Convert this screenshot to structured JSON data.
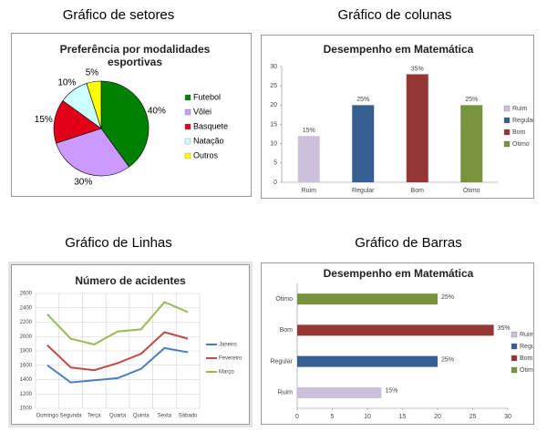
{
  "chart_data": [
    {
      "type": "pie",
      "caption": "Gráfico de setores",
      "title": "Preferência por modalidades esportivas",
      "categories": [
        "Futebol",
        "Vôlei",
        "Basquete",
        "Natação",
        "Outros"
      ],
      "values": [
        40,
        30,
        15,
        10,
        5
      ],
      "value_labels": [
        "40%",
        "30%",
        "15%",
        "10%",
        "5%"
      ],
      "colors": [
        "#008000",
        "#cc99ff",
        "#e00018",
        "#ccffff",
        "#ffff00"
      ]
    },
    {
      "type": "bar",
      "caption": "Gráfico de colunas",
      "title": "Desempenho em Matemática",
      "categories": [
        "Ruim",
        "Regular",
        "Bom",
        "Ótimo"
      ],
      "values": [
        12,
        20,
        28,
        20
      ],
      "bar_labels": [
        "15%",
        "25%",
        "35%",
        "25%"
      ],
      "colors": [
        "#ccc0da",
        "#376092",
        "#953735",
        "#77933c"
      ],
      "ylim": [
        0,
        30
      ],
      "yticks": [
        0,
        5,
        10,
        15,
        20,
        25,
        30
      ],
      "grid": false
    },
    {
      "type": "line",
      "caption": "Gráfico de Linhas",
      "title": "Número de acidentes",
      "categories": [
        "Domingo",
        "Segunda",
        "Terça",
        "Quarta",
        "Quinta",
        "Sexta",
        "Sábado"
      ],
      "series": [
        {
          "name": "Janeiro",
          "color": "#4a7ebb",
          "values": [
            1600,
            1360,
            1390,
            1420,
            1550,
            1840,
            1780
          ]
        },
        {
          "name": "Fevereiro",
          "color": "#be4b48",
          "values": [
            1880,
            1570,
            1530,
            1630,
            1760,
            2060,
            1970
          ]
        },
        {
          "name": "Março",
          "color": "#98b954",
          "values": [
            2310,
            1970,
            1890,
            2070,
            2100,
            2480,
            2340
          ]
        }
      ],
      "ylim": [
        1000,
        2600
      ],
      "yticks": [
        1000,
        1200,
        1400,
        1600,
        1800,
        2000,
        2200,
        2400,
        2600
      ],
      "grid": true
    },
    {
      "type": "hbar",
      "caption": "Gráfico de Barras",
      "title": "Desempenho em Matemática",
      "categories": [
        "Ruim",
        "Regular",
        "Bom",
        "Ótimo"
      ],
      "values": [
        12,
        20,
        28,
        20
      ],
      "bar_labels": [
        "15%",
        "25%",
        "35%",
        "25%"
      ],
      "colors": [
        "#ccc0da",
        "#376092",
        "#953735",
        "#77933c"
      ],
      "xlim": [
        0,
        30
      ],
      "xticks": [
        0,
        5,
        10,
        15,
        20,
        25,
        30
      ],
      "grid": false
    }
  ]
}
